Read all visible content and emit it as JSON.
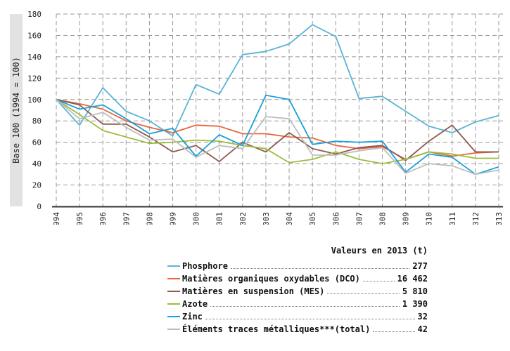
{
  "chart_data": {
    "type": "line",
    "ylabel": "Base 100 (1994 = 100)",
    "ylim": [
      0,
      180
    ],
    "yticks": [
      0,
      20,
      40,
      60,
      80,
      100,
      120,
      140,
      160,
      180
    ],
    "grid": true,
    "categories": [
      "1994",
      "1995",
      "1996",
      "1997",
      "1998",
      "1999",
      "2000",
      "2001",
      "2002",
      "2003",
      "2004",
      "2005",
      "2006",
      "2007",
      "2008",
      "2009",
      "2010",
      "2011",
      "2012",
      "2013"
    ],
    "legend_title": "Valeurs en 2013 (t)",
    "series": [
      {
        "name": "Phosphore",
        "color": "#5ab4d4",
        "value_2013": "277",
        "values": [
          100,
          76,
          111,
          89,
          80,
          66,
          114,
          105,
          142,
          145,
          152,
          170,
          159,
          101,
          103,
          89,
          75,
          69,
          79,
          85
        ]
      },
      {
        "name": "Matières organiques oxydables (DCO)",
        "color": "#e8653c",
        "value_2013": "16 462",
        "values": [
          100,
          96,
          91,
          80,
          74,
          69,
          76,
          75,
          68,
          68,
          65,
          64,
          57,
          54,
          56,
          44,
          51,
          47,
          50,
          51
        ]
      },
      {
        "name": "Matières en suspension (MES)",
        "color": "#8c5a50",
        "value_2013": "5 810",
        "values": [
          100,
          95,
          77,
          77,
          65,
          51,
          57,
          42,
          60,
          51,
          69,
          54,
          49,
          55,
          57,
          43,
          61,
          76,
          51,
          51
        ]
      },
      {
        "name": "Azote",
        "color": "#9cbc3c",
        "value_2013": "1 390",
        "values": [
          100,
          86,
          71,
          65,
          59,
          60,
          62,
          61,
          57,
          54,
          41,
          44,
          51,
          44,
          40,
          44,
          51,
          49,
          45,
          45
        ]
      },
      {
        "name": "Zinc",
        "color": "#1aa0d8",
        "value_2013": "32",
        "values": [
          100,
          91,
          95,
          82,
          68,
          73,
          47,
          67,
          57,
          104,
          100,
          58,
          61,
          60,
          61,
          32,
          49,
          46,
          30,
          37
        ]
      },
      {
        "name": "Éléments traces métalliques***(total)",
        "color": "#bdbdbd",
        "value_2013": "42",
        "values": [
          100,
          82,
          88,
          74,
          62,
          63,
          46,
          57,
          54,
          84,
          82,
          48,
          48,
          52,
          55,
          31,
          40,
          38,
          30,
          34
        ]
      }
    ]
  }
}
